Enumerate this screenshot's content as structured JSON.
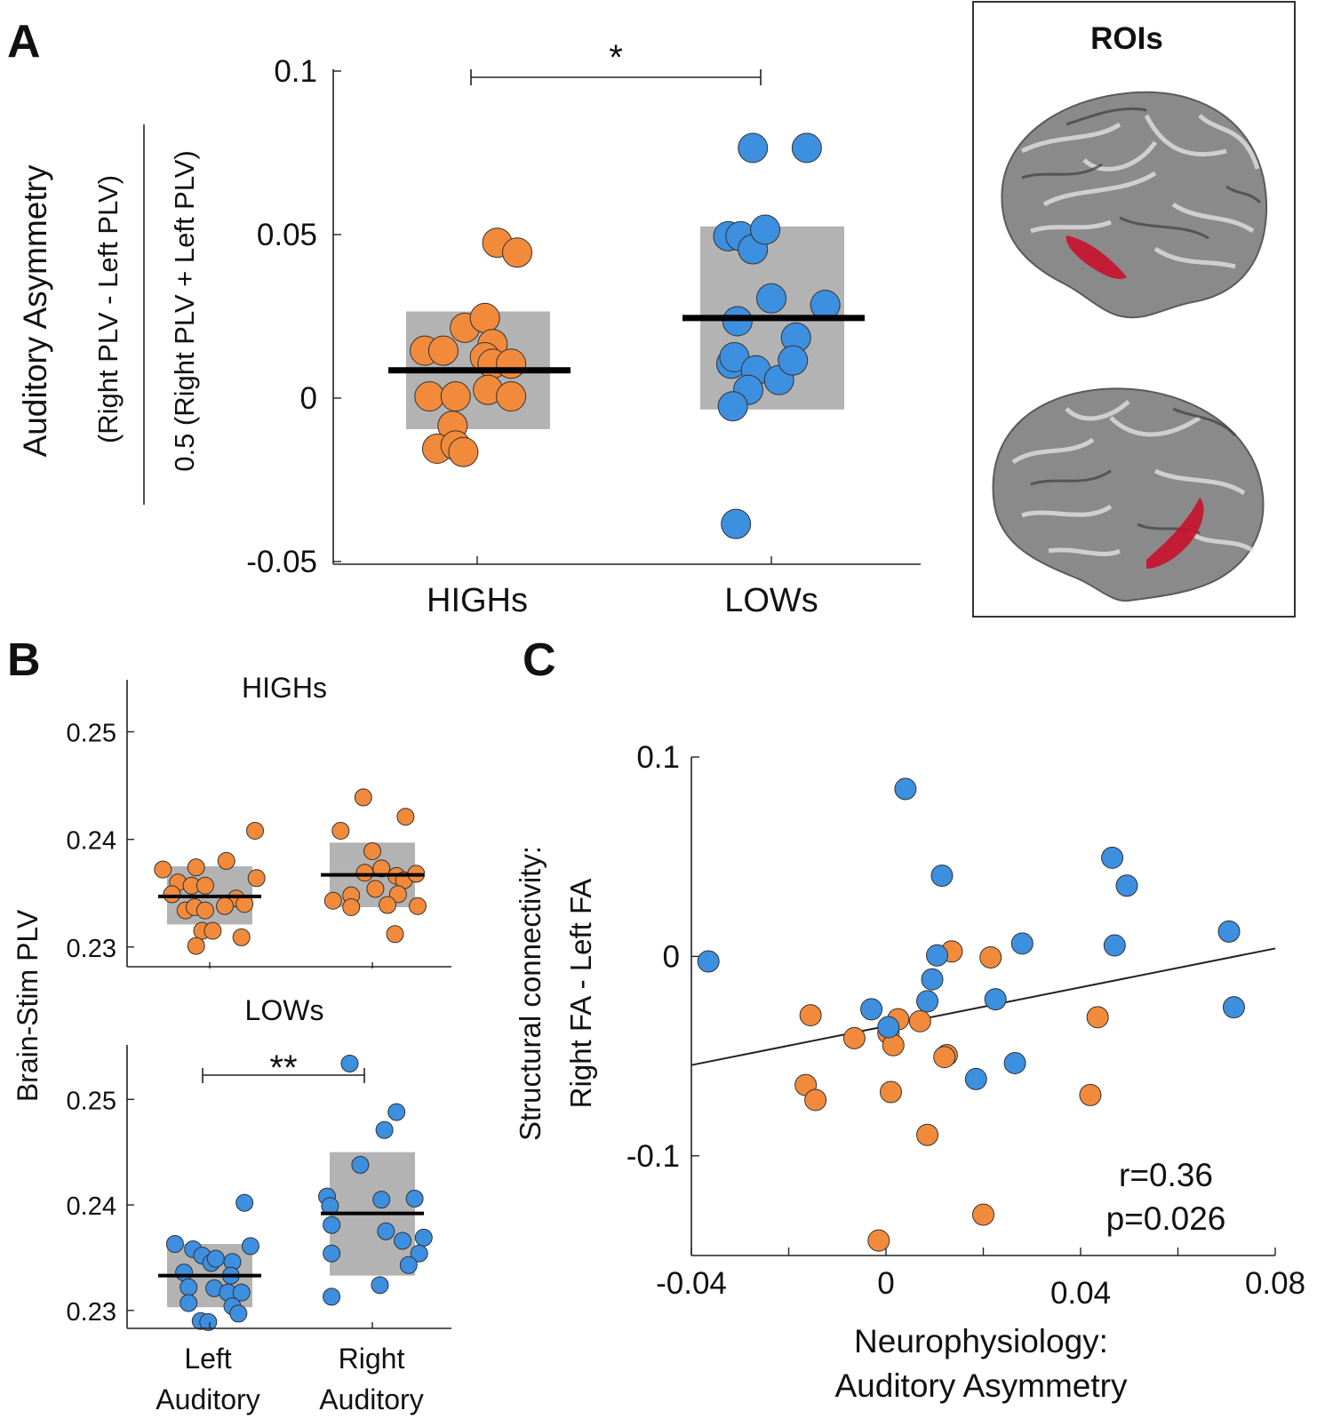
{
  "panel_labels": {
    "a": "A",
    "b": "B",
    "c": "C"
  },
  "roi": {
    "title": "ROIs",
    "highlight_color": "#c8102e"
  },
  "colors": {
    "highs": "#f28a3c",
    "lows": "#3d8fe0",
    "box": "#b3b3b3"
  },
  "chart_data": [
    {
      "id": "A",
      "type": "scatter",
      "title": "",
      "ylabel_main": "Auditory Asymmetry",
      "ylabel_numerator": "(Right PLV - Left PLV)",
      "ylabel_denominator": "0.5 (Right PLV + Left PLV)",
      "categories": [
        "HIGHs",
        "LOWs"
      ],
      "ylim": [
        -0.05,
        0.1
      ],
      "yticks": [
        0.1,
        0.05,
        0,
        -0.05
      ],
      "ytick_labels": [
        "0.1",
        "0.05",
        "0",
        "-0.05"
      ],
      "significance": "*",
      "series": [
        {
          "name": "HIGHs",
          "color": "#f28a3c",
          "mean": 0.0085,
          "box": [
            -0.0095,
            0.0265
          ],
          "points": [
            [
              -0.34,
              0.0145
            ],
            [
              -0.22,
              0.0145
            ],
            [
              -0.31,
              0.0005
            ],
            [
              -0.14,
              0.0005
            ],
            [
              -0.16,
              -0.0085
            ],
            [
              -0.26,
              -0.0155
            ],
            [
              -0.14,
              -0.0145
            ],
            [
              -0.09,
              -0.0165
            ],
            [
              -0.08,
              0.0215
            ],
            [
              0.05,
              0.0245
            ],
            [
              0.1,
              0.0165
            ],
            [
              0.05,
              0.0125
            ],
            [
              0.1,
              0.0105
            ],
            [
              0.07,
              0.0025
            ],
            [
              0.22,
              0.0105
            ],
            [
              0.22,
              0.0005
            ],
            [
              0.13,
              0.0475
            ],
            [
              0.26,
              0.0445
            ]
          ]
        },
        {
          "name": "LOWs",
          "color": "#3d8fe0",
          "mean": 0.0245,
          "box": [
            -0.0035,
            0.0525
          ],
          "points": [
            [
              -0.28,
              0.0495
            ],
            [
              -0.2,
              0.0495
            ],
            [
              -0.12,
              0.0455
            ],
            [
              -0.04,
              0.0515
            ],
            [
              -0.12,
              0.0765
            ],
            [
              0.23,
              0.0765
            ],
            [
              0,
              0.0305
            ],
            [
              -0.22,
              0.0235
            ],
            [
              -0.26,
              0.0105
            ],
            [
              -0.24,
              0.0125
            ],
            [
              -0.1,
              0.0085
            ],
            [
              -0.15,
              0.0025
            ],
            [
              0.05,
              0.0055
            ],
            [
              0.16,
              0.0185
            ],
            [
              0.14,
              0.0115
            ],
            [
              -0.25,
              -0.0025
            ],
            [
              0.35,
              0.0285
            ],
            [
              -0.23,
              -0.0385
            ]
          ]
        }
      ]
    },
    {
      "id": "B-HIGHs",
      "type": "scatter",
      "title": "HIGHs",
      "ylabel": "Brain-Stim PLV",
      "categories": [
        "Left Auditory",
        "Right Auditory"
      ],
      "ylim": [
        0.228,
        0.255
      ],
      "yticks": [
        0.25,
        0.24,
        0.23
      ],
      "ytick_labels": [
        "0.25",
        "0.24",
        "0.23"
      ],
      "series": [
        {
          "name": "Left Auditory",
          "color": "#f28a3c",
          "mean": 0.2347,
          "box": [
            0.2321,
            0.2375
          ],
          "points": [
            [
              -0.62,
              0.2372
            ],
            [
              -0.42,
              0.236
            ],
            [
              -0.24,
              0.2357
            ],
            [
              -0.18,
              0.2374
            ],
            [
              -0.5,
              0.2349
            ],
            [
              -0.06,
              0.2357
            ],
            [
              0.22,
              0.238
            ],
            [
              0.35,
              0.2345
            ],
            [
              0.6,
              0.2408
            ],
            [
              0.62,
              0.2364
            ],
            [
              -0.32,
              0.2334
            ],
            [
              -0.2,
              0.2337
            ],
            [
              -0.06,
              0.2334
            ],
            [
              0.2,
              0.2338
            ],
            [
              0.46,
              0.234
            ],
            [
              -0.1,
              0.2315
            ],
            [
              0.04,
              0.2315
            ],
            [
              0.42,
              0.2309
            ],
            [
              -0.18,
              0.2301
            ]
          ]
        },
        {
          "name": "Right Auditory",
          "color": "#f28a3c",
          "mean": 0.2367,
          "box": [
            0.2337,
            0.2397
          ],
          "points": [
            [
              -0.12,
              0.2439
            ],
            [
              0.44,
              0.2421
            ],
            [
              -0.42,
              0.2408
            ],
            [
              0,
              0.2389
            ],
            [
              -0.1,
              0.2369
            ],
            [
              0.12,
              0.2373
            ],
            [
              0.32,
              0.2366
            ],
            [
              0.42,
              0.2362
            ],
            [
              0.58,
              0.2368
            ],
            [
              -0.28,
              0.2348
            ],
            [
              0.04,
              0.2354
            ],
            [
              0.34,
              0.2349
            ],
            [
              0.6,
              0.2338
            ],
            [
              -0.52,
              0.2343
            ],
            [
              -0.28,
              0.2337
            ],
            [
              0.2,
              0.2339
            ],
            [
              0.3,
              0.2312
            ]
          ]
        }
      ]
    },
    {
      "id": "B-LOWs",
      "type": "scatter",
      "title": "LOWs",
      "ylabel": "Brain-Stim PLV",
      "categories": [
        "Left Auditory",
        "Right Auditory"
      ],
      "xlabels_line1": [
        "Left",
        "Right"
      ],
      "xlabels_line2": [
        "Auditory",
        "Auditory"
      ],
      "ylim": [
        0.2283,
        0.2555
      ],
      "yticks": [
        0.25,
        0.24,
        0.23
      ],
      "ytick_labels": [
        "0.25",
        "0.24",
        "0.23"
      ],
      "significance": "**",
      "series": [
        {
          "name": "Left Auditory",
          "color": "#3d8fe0",
          "mean": 0.2333,
          "box": [
            0.2303,
            0.2363
          ],
          "points": [
            [
              -0.46,
              0.2363
            ],
            [
              0.46,
              0.2402
            ],
            [
              -0.22,
              0.2358
            ],
            [
              -0.1,
              0.2352
            ],
            [
              0.02,
              0.2345
            ],
            [
              0.08,
              0.2349
            ],
            [
              0.3,
              0.2346
            ],
            [
              0.54,
              0.2361
            ],
            [
              -0.34,
              0.2336
            ],
            [
              0.28,
              0.2333
            ],
            [
              -0.28,
              0.2322
            ],
            [
              0.06,
              0.2321
            ],
            [
              0.24,
              0.2317
            ],
            [
              0.42,
              0.2317
            ],
            [
              -0.28,
              0.2307
            ],
            [
              0.3,
              0.2304
            ],
            [
              0.38,
              0.2297
            ],
            [
              -0.12,
              0.229
            ],
            [
              -0.02,
              0.2289
            ]
          ]
        },
        {
          "name": "Right Auditory",
          "color": "#3d8fe0",
          "mean": 0.2392,
          "box": [
            0.2333,
            0.245
          ],
          "points": [
            [
              -0.3,
              0.2534
            ],
            [
              0.16,
              0.2471
            ],
            [
              0.32,
              0.2488
            ],
            [
              -0.16,
              0.2438
            ],
            [
              -0.6,
              0.2408
            ],
            [
              -0.56,
              0.2399
            ],
            [
              0.12,
              0.2405
            ],
            [
              0.56,
              0.2406
            ],
            [
              -0.54,
              0.2381
            ],
            [
              0.18,
              0.2375
            ],
            [
              0.4,
              0.2366
            ],
            [
              0.68,
              0.2369
            ],
            [
              -0.54,
              0.2354
            ],
            [
              0.62,
              0.2354
            ],
            [
              0.48,
              0.2343
            ],
            [
              0.1,
              0.2324
            ],
            [
              -0.54,
              0.2313
            ]
          ]
        }
      ]
    },
    {
      "id": "C",
      "type": "scatter",
      "title": "",
      "xlabel_line1": "Neurophysiology:",
      "xlabel_line2": "Auditory Asymmetry",
      "ylabel_line1": "Structural connectivity:",
      "ylabel_line2": "Right FA - Left FA",
      "xlim": [
        -0.04,
        0.08
      ],
      "ylim": [
        -0.15,
        0.1
      ],
      "xticks": [
        -0.04,
        0,
        0.04,
        0.08
      ],
      "xtick_labels": [
        "-0.04",
        "0",
        "0.04",
        "0.08"
      ],
      "yticks": [
        0.1,
        0,
        -0.1
      ],
      "ytick_labels": [
        "0.1",
        "0",
        "-0.1"
      ],
      "fit_line": {
        "x": [
          -0.04,
          0.08
        ],
        "y": [
          -0.0545,
          0.004
        ]
      },
      "stats_r": "r=0.36",
      "stats_p": "p=0.026",
      "series": [
        {
          "name": "HIGHs",
          "color": "#f28a3c",
          "points": [
            [
              -0.0155,
              -0.0295
            ],
            [
              -0.0065,
              -0.041
            ],
            [
              0.0005,
              -0.0385
            ],
            [
              0.0015,
              -0.0445
            ],
            [
              0.0025,
              -0.0315
            ],
            [
              0.007,
              -0.0325
            ],
            [
              0.0135,
              0.0025
            ],
            [
              0.0215,
              -0.0005
            ],
            [
              0.0125,
              -0.0495
            ],
            [
              0.012,
              -0.0505
            ],
            [
              -0.0165,
              -0.0645
            ],
            [
              -0.0145,
              -0.072
            ],
            [
              0.001,
              -0.068
            ],
            [
              0.0085,
              -0.0895
            ],
            [
              0.0435,
              -0.0305
            ],
            [
              0.042,
              -0.0695
            ],
            [
              0.02,
              -0.1295
            ],
            [
              -0.0015,
              -0.1425
            ]
          ]
        },
        {
          "name": "LOWs",
          "color": "#3d8fe0",
          "points": [
            [
              0.004,
              0.084
            ],
            [
              0.0115,
              0.0405
            ],
            [
              0.0465,
              0.0495
            ],
            [
              0.0495,
              0.0355
            ],
            [
              -0.0365,
              -0.0025
            ],
            [
              0.0105,
              0.0005
            ],
            [
              0.0095,
              -0.0115
            ],
            [
              0.028,
              0.0065
            ],
            [
              0.047,
              0.0055
            ],
            [
              0.0705,
              0.0125
            ],
            [
              0.0715,
              -0.0255
            ],
            [
              0.0085,
              -0.0225
            ],
            [
              0.0225,
              -0.0215
            ],
            [
              -0.003,
              -0.0265
            ],
            [
              0.0005,
              -0.0355
            ],
            [
              0.0265,
              -0.0535
            ],
            [
              0.0185,
              -0.0615
            ]
          ]
        }
      ]
    }
  ]
}
